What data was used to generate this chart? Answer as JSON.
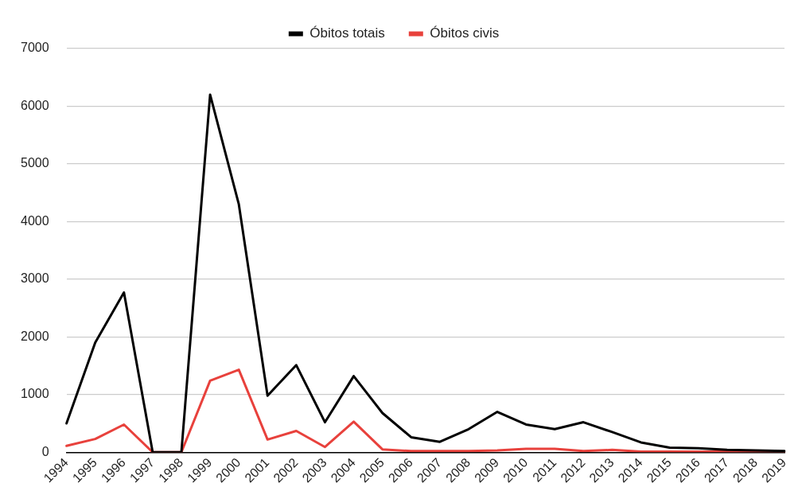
{
  "chart_data": {
    "type": "line",
    "categories": [
      "1994",
      "1995",
      "1996",
      "1997",
      "1998",
      "1999",
      "2000",
      "2001",
      "2002",
      "2003",
      "2004",
      "2005",
      "2006",
      "2007",
      "2008",
      "2009",
      "2010",
      "2011",
      "2012",
      "2013",
      "2014",
      "2015",
      "2016",
      "2017",
      "2018",
      "2019"
    ],
    "series": [
      {
        "name": "Óbitos totais",
        "color": "#000000",
        "values": [
          500,
          1900,
          2770,
          0,
          0,
          6200,
          4300,
          980,
          1510,
          520,
          1320,
          680,
          260,
          180,
          400,
          700,
          480,
          400,
          520,
          350,
          170,
          80,
          70,
          40,
          30,
          20
        ]
      },
      {
        "name": "Óbitos civis",
        "color": "#e8413c",
        "values": [
          110,
          230,
          480,
          0,
          0,
          1240,
          1430,
          220,
          370,
          90,
          530,
          50,
          20,
          20,
          20,
          30,
          60,
          60,
          20,
          40,
          10,
          10,
          10,
          10,
          10,
          0
        ]
      }
    ],
    "ylim": [
      0,
      7000
    ],
    "yticks": [
      0,
      1000,
      2000,
      3000,
      4000,
      5000,
      6000,
      7000
    ],
    "grid": "y",
    "legend": "top",
    "marker": "none",
    "line_style": "solid"
  }
}
